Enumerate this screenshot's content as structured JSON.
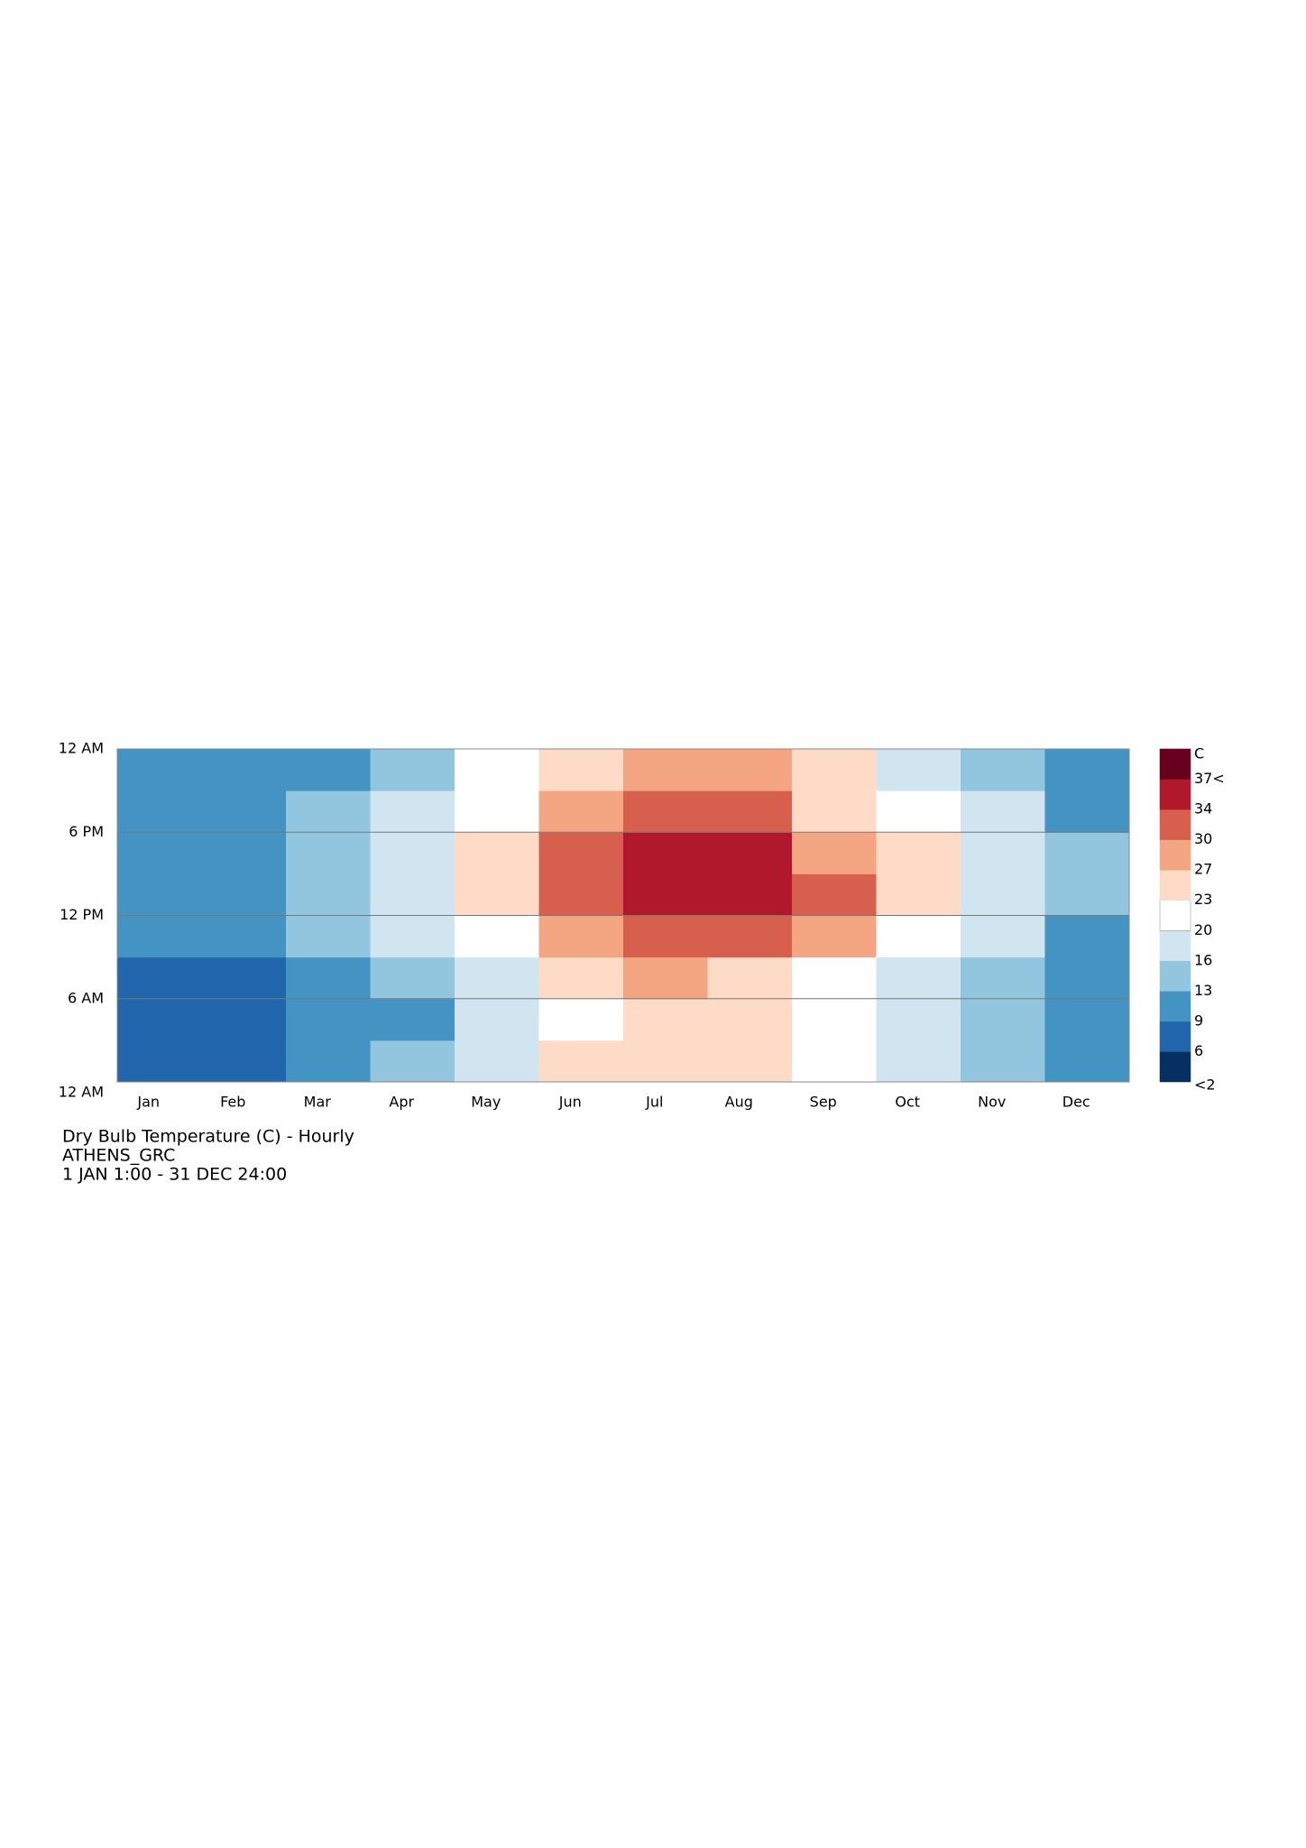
{
  "chart_data": {
    "type": "heatmap",
    "title": "Dry Bulb Temperature (C) - Hourly",
    "subtitle": "ATHENS_GRC",
    "period": "1 JAN 1:00 - 31 DEC 24:00",
    "categories": [
      "Jan",
      "Feb",
      "Mar",
      "Apr",
      "May",
      "Jun",
      "Jul",
      "Aug",
      "Sep",
      "Oct",
      "Nov",
      "Dec"
    ],
    "hour_bins": [
      0,
      3,
      6,
      9,
      12,
      15,
      18,
      21,
      24
    ],
    "values": [
      [
        8,
        7,
        7,
        10,
        12,
        12,
        10,
        9
      ],
      [
        8,
        7,
        7,
        10,
        12,
        12,
        10,
        9
      ],
      [
        10,
        9,
        9,
        13,
        15,
        15,
        13,
        11
      ],
      [
        13,
        12,
        13,
        17,
        19,
        19,
        17,
        15
      ],
      [
        18,
        17,
        18,
        22,
        25,
        25,
        22,
        20
      ],
      [
        23,
        22,
        23,
        28,
        31,
        31,
        28,
        25
      ],
      [
        26,
        25,
        27,
        32,
        35,
        35,
        31,
        28
      ],
      [
        26,
        25,
        26,
        31,
        34,
        34,
        30,
        27
      ],
      [
        22,
        21,
        22,
        27,
        30,
        29,
        26,
        24
      ],
      [
        18,
        17,
        18,
        22,
        24,
        23,
        20,
        19
      ],
      [
        14,
        13,
        13,
        17,
        19,
        18,
        16,
        15
      ],
      [
        10,
        9,
        9,
        12,
        14,
        14,
        12,
        11
      ]
    ],
    "ylim": [
      0,
      24
    ],
    "yticks": [
      {
        "value": 0,
        "label": "12 AM"
      },
      {
        "value": 6,
        "label": "6 AM"
      },
      {
        "value": 12,
        "label": "12 PM"
      },
      {
        "value": 18,
        "label": "6 PM"
      },
      {
        "value": 24,
        "label": "12 AM"
      }
    ],
    "grid": true,
    "colorbar": {
      "unit": "C",
      "ticks": [
        {
          "value": 2,
          "label": "<2"
        },
        6,
        9,
        13,
        16,
        20,
        23,
        27,
        30,
        34,
        {
          "value": 37,
          "label": "37<"
        }
      ],
      "colors": [
        "#053061",
        "#2166ac",
        "#4393c3",
        "#92c5de",
        "#d1e5f0",
        "#ffffff",
        "#fddbc7",
        "#f4a582",
        "#d6604d",
        "#b2182b",
        "#67001f"
      ]
    }
  }
}
